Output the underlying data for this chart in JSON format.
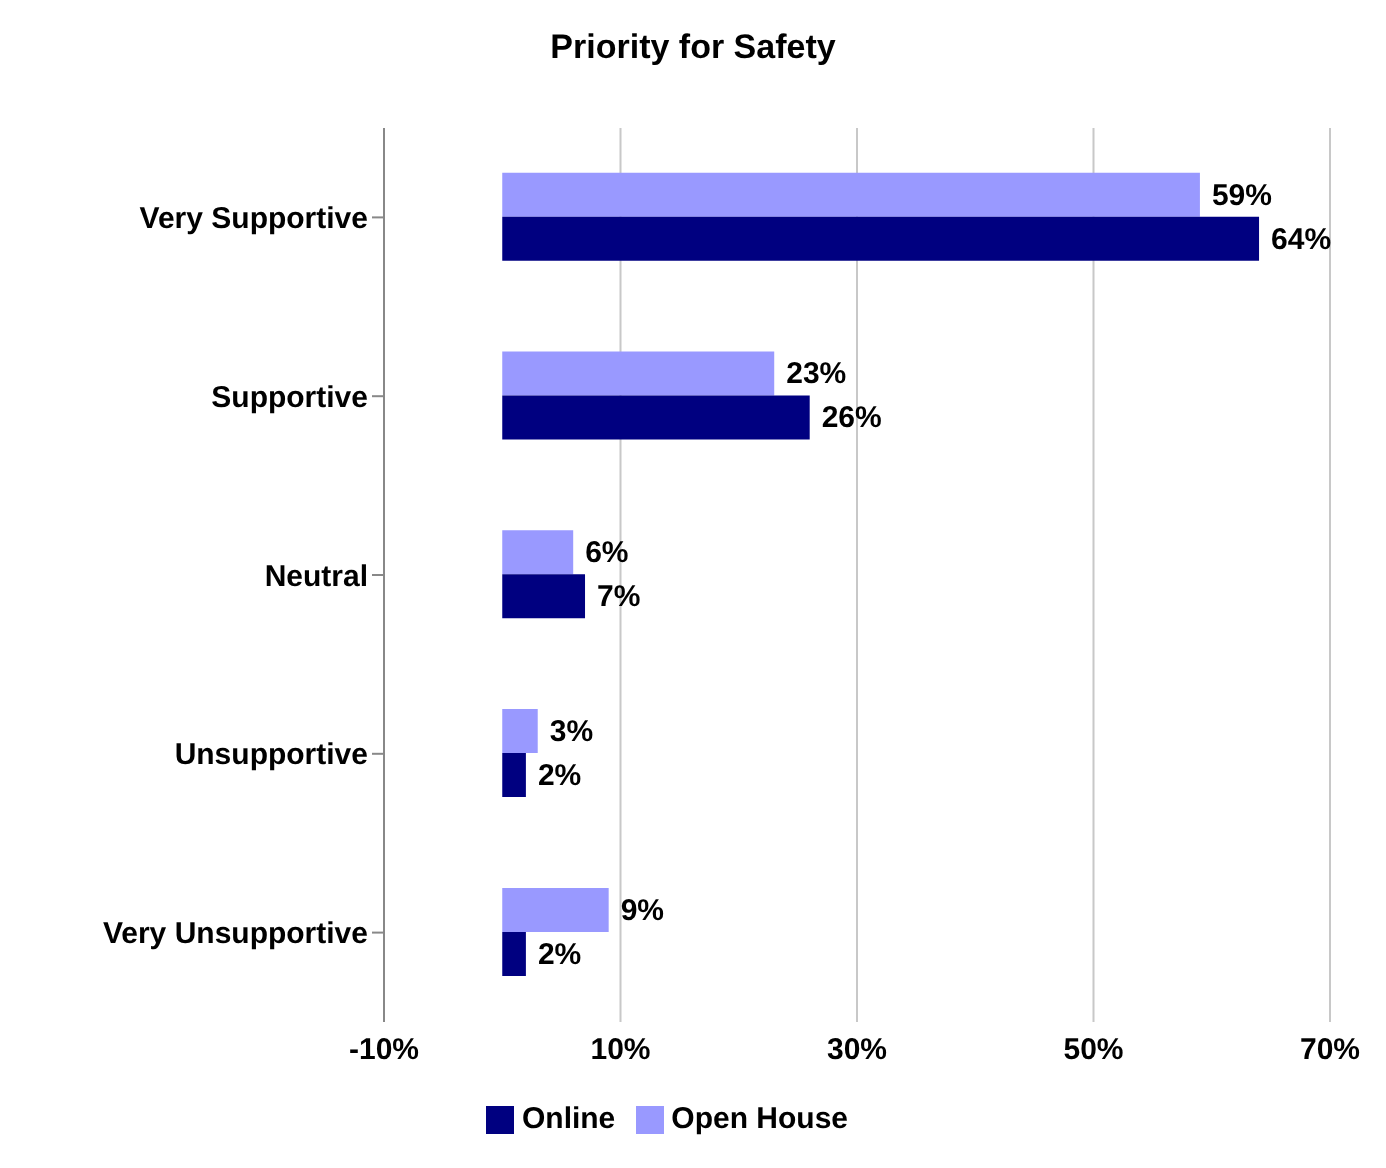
{
  "chart_data": {
    "type": "bar",
    "orientation": "horizontal",
    "title": "Priority for Safety",
    "categories": [
      "Very Supportive",
      "Supportive",
      "Neutral",
      "Unsupportive",
      "Very Unsupportive"
    ],
    "series": [
      {
        "name": "Open House",
        "color": "#9999ff",
        "values": [
          59,
          23,
          6,
          3,
          9
        ],
        "value_labels": [
          "59%",
          "23%",
          "6%",
          "3%",
          "9%"
        ]
      },
      {
        "name": "Online",
        "color": "#000080",
        "values": [
          64,
          26,
          7,
          2,
          2
        ],
        "value_labels": [
          "64%",
          "26%",
          "7%",
          "2%",
          "2%"
        ]
      }
    ],
    "xlim": [
      -10,
      70
    ],
    "xticks": [
      {
        "value": -10,
        "label": "-10%"
      },
      {
        "value": 10,
        "label": "10%"
      },
      {
        "value": 30,
        "label": "30%"
      },
      {
        "value": 50,
        "label": "50%"
      },
      {
        "value": 70,
        "label": "70%"
      }
    ],
    "grid": "x",
    "legend": "bottom"
  }
}
